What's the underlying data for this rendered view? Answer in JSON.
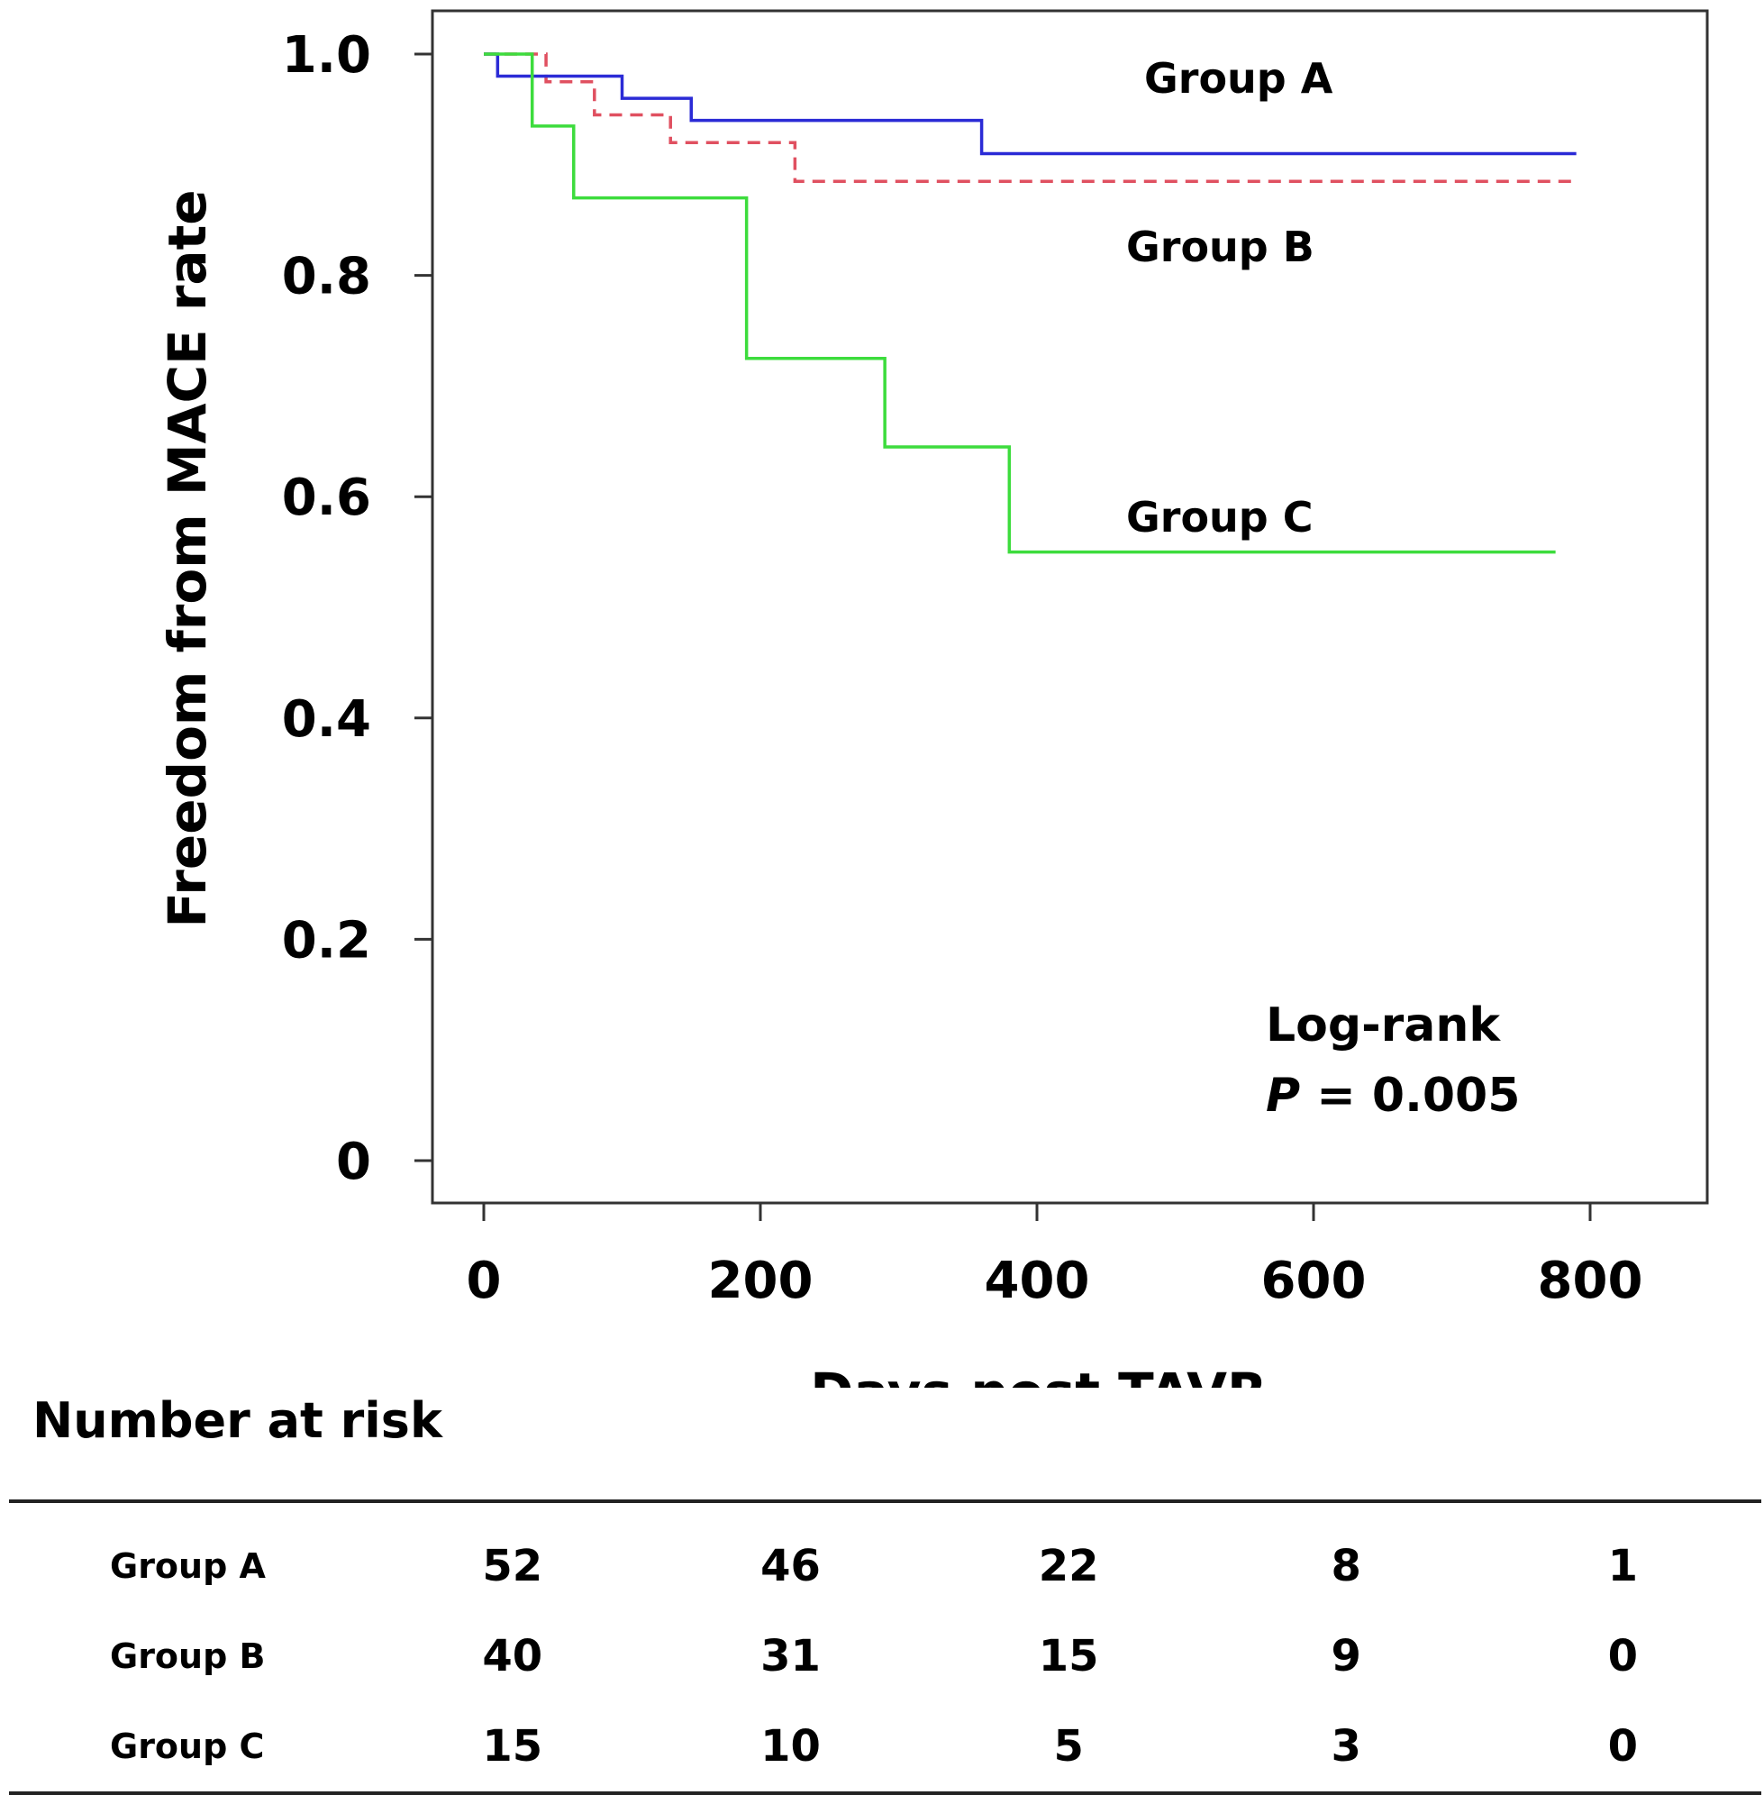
{
  "chart_data": {
    "type": "line",
    "subtype": "kaplan-meier-step",
    "title": "",
    "xlabel": "Days post TAVR",
    "ylabel": "Freedom from MACE rate",
    "xlim": [
      0,
      800
    ],
    "ylim": [
      0,
      1
    ],
    "x_ticks": [
      "0",
      "200",
      "400",
      "600",
      "800"
    ],
    "y_ticks": [
      "0",
      "0.2",
      "0.4",
      "0.6",
      "0.8",
      "1.0"
    ],
    "grid": false,
    "series": [
      {
        "name": "Group A",
        "color": "#2b2bd6",
        "dash": "solid",
        "x": [
          0,
          10,
          100,
          150,
          360,
          790
        ],
        "y": [
          1.0,
          0.98,
          0.96,
          0.94,
          0.91,
          0.91
        ]
      },
      {
        "name": "Group B",
        "color": "#e05060",
        "dash": "dashed",
        "x": [
          0,
          45,
          80,
          135,
          225,
          790
        ],
        "y": [
          1.0,
          0.975,
          0.945,
          0.92,
          0.885,
          0.885
        ]
      },
      {
        "name": "Group C",
        "color": "#3ddc3d",
        "dash": "solid",
        "x": [
          0,
          35,
          65,
          190,
          290,
          380,
          775
        ],
        "y": [
          1.0,
          0.935,
          0.87,
          0.725,
          0.645,
          0.55,
          0.55
        ]
      }
    ],
    "annotations": {
      "test_line1": "Log-rank",
      "p_symbol": "P",
      "p_rest": " = 0.005"
    }
  },
  "risk_table": {
    "title": "Number at risk",
    "rows": [
      {
        "label": "Group A",
        "values": [
          "52",
          "46",
          "22",
          "8",
          "1"
        ]
      },
      {
        "label": "Group B",
        "values": [
          "40",
          "31",
          "15",
          "9",
          "0"
        ]
      },
      {
        "label": "Group C",
        "values": [
          "15",
          "10",
          "5",
          "3",
          "0"
        ]
      }
    ]
  }
}
